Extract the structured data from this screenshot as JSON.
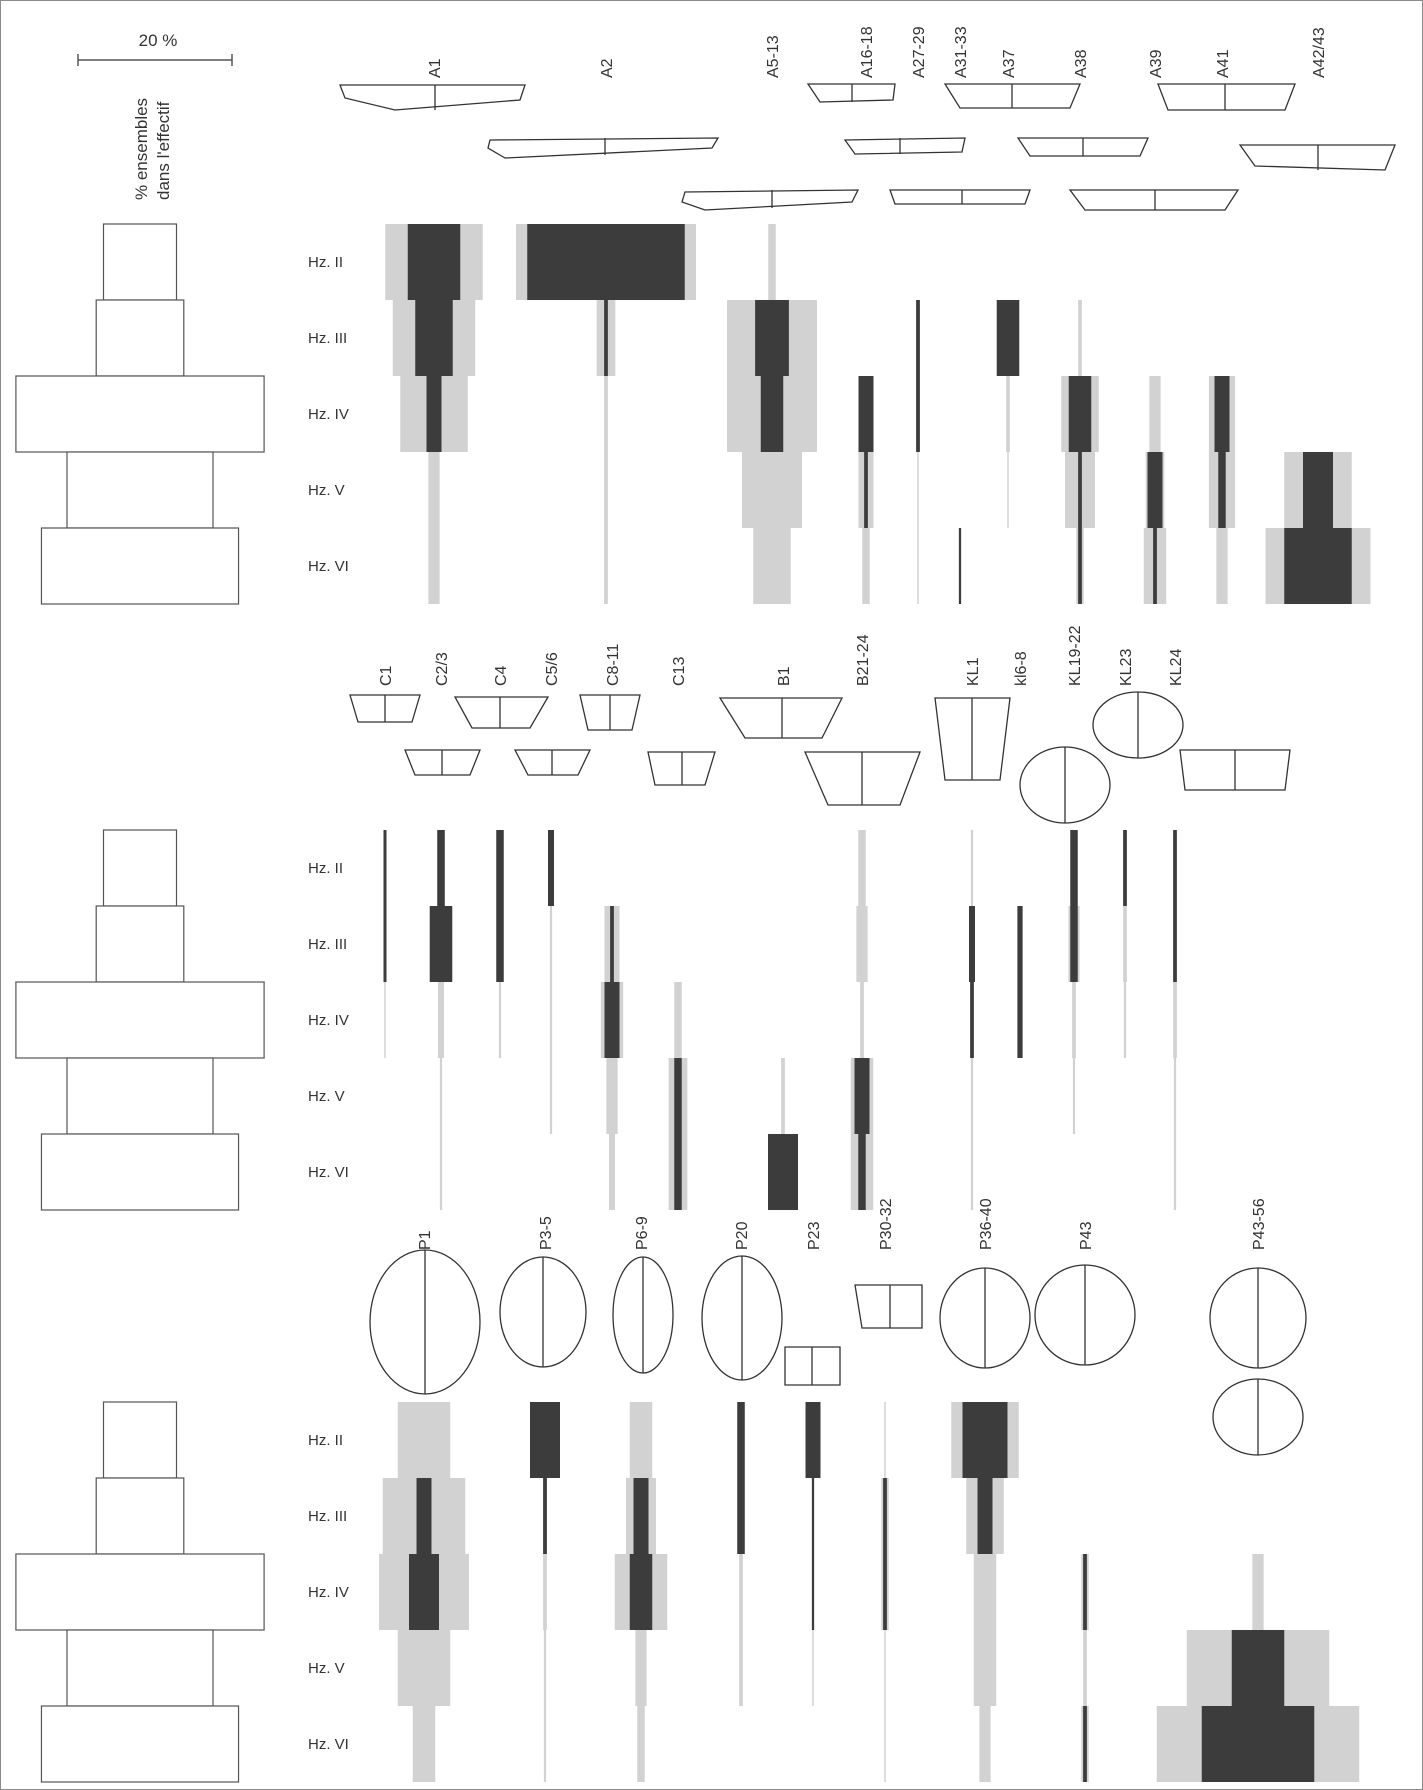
{
  "colors": {
    "outer": "#d2d2d2",
    "inner": "#3c3c3c",
    "stairs": "#555555",
    "vessel": "#333333"
  },
  "scale": {
    "label": "20 %",
    "axis_title_1": "% ensembles",
    "axis_title_2": "dans l'effectif"
  },
  "chart_data": [
    {
      "type": "seriation",
      "levels": [
        "Hz. II",
        "Hz. III",
        "Hz. IV",
        "Hz. V",
        "Hz. VI"
      ],
      "effectif_percent": [
        10,
        12,
        34,
        20,
        27
      ],
      "series": [
        {
          "name": "A1",
          "outer": [
            13,
            11,
            9,
            1.5,
            1.5
          ],
          "inner": [
            7,
            5,
            2,
            0,
            0
          ]
        },
        {
          "name": "A2",
          "outer": [
            24,
            2.5,
            0.5,
            0.5,
            0.5
          ],
          "inner": [
            21,
            0.5,
            0,
            0,
            0
          ]
        },
        {
          "name": "A5-13",
          "outer": [
            1,
            12,
            12,
            8,
            5
          ],
          "inner": [
            0,
            4.5,
            3,
            0,
            0
          ]
        },
        {
          "name": "A16-18",
          "outer": [
            0,
            0,
            2,
            2,
            1
          ],
          "inner": [
            0,
            0,
            2,
            0.5,
            0
          ]
        },
        {
          "name": "A27-29",
          "outer": [
            0,
            0.5,
            0.5,
            0.2,
            0.2
          ],
          "inner": [
            0,
            0.5,
            0.5,
            0,
            0
          ]
        },
        {
          "name": "A31-33",
          "outer": [
            0,
            0,
            0,
            0,
            0
          ],
          "inner": [
            0,
            0,
            0,
            0,
            0.3
          ]
        },
        {
          "name": "A37",
          "outer": [
            0,
            3,
            0.5,
            0.2,
            0
          ],
          "inner": [
            0,
            3,
            0,
            0,
            0
          ]
        },
        {
          "name": "A38",
          "outer": [
            0,
            0.5,
            5,
            4,
            1
          ],
          "inner": [
            0,
            0,
            3,
            0.5,
            0.5
          ]
        },
        {
          "name": "A39",
          "outer": [
            0,
            0,
            1.5,
            2.5,
            3
          ],
          "inner": [
            0,
            0,
            0,
            2,
            0.5
          ]
        },
        {
          "name": "A41",
          "outer": [
            0,
            0,
            3.5,
            3.5,
            1.5
          ],
          "inner": [
            0,
            0,
            2,
            1,
            0
          ]
        },
        {
          "name": "A42/43",
          "outer": [
            0,
            0,
            0,
            9,
            14
          ],
          "inner": [
            0,
            0,
            0,
            4,
            9
          ]
        },
        {
          "name": "C1",
          "outer": [
            0,
            0,
            0.2,
            0,
            0
          ],
          "inner": [
            0.4,
            0.4,
            0,
            0,
            0
          ]
        },
        {
          "name": "C2/3",
          "outer": [
            1,
            3,
            0.8,
            0.3,
            0.3
          ],
          "inner": [
            1,
            3,
            0,
            0,
            0
          ]
        },
        {
          "name": "C4",
          "outer": [
            0,
            0,
            0.3,
            0,
            0
          ],
          "inner": [
            1,
            1,
            0,
            0,
            0
          ]
        },
        {
          "name": "C5/6",
          "outer": [
            0,
            0.3,
            0.3,
            0.3,
            0
          ],
          "inner": [
            0.8,
            0,
            0,
            0,
            0
          ]
        },
        {
          "name": "C8-11",
          "outer": [
            0,
            2,
            3,
            1.5,
            0.8
          ],
          "inner": [
            0,
            0.5,
            2,
            0,
            0
          ]
        },
        {
          "name": "C13",
          "outer": [
            0,
            0,
            1,
            2.5,
            2.5
          ],
          "inner": [
            0,
            0,
            0,
            1,
            1
          ]
        },
        {
          "name": "B1",
          "outer": [
            0,
            0,
            0,
            0.5,
            0
          ],
          "inner": [
            0,
            0,
            0,
            0,
            4
          ]
        },
        {
          "name": "B21-24",
          "outer": [
            1,
            1.5,
            0.5,
            3,
            3
          ],
          "inner": [
            0,
            0,
            0,
            2,
            1
          ]
        },
        {
          "name": "KL1",
          "outer": [
            0.3,
            0.5,
            0.3,
            0.3,
            0.3
          ],
          "inner": [
            0,
            0.8,
            0.5,
            0,
            0
          ]
        },
        {
          "name": "kl6-8",
          "outer": [
            0,
            0,
            0,
            0,
            0
          ],
          "inner": [
            0,
            0.7,
            0.7,
            0,
            0
          ]
        },
        {
          "name": "KL19-22",
          "outer": [
            0.5,
            1.5,
            0.5,
            0.3,
            0
          ],
          "inner": [
            1,
            1,
            0,
            0,
            0
          ]
        },
        {
          "name": "KL23",
          "outer": [
            0,
            0.5,
            0.3,
            0,
            0
          ],
          "inner": [
            0.5,
            0,
            0,
            0,
            0
          ]
        },
        {
          "name": "KL24",
          "outer": [
            0,
            0,
            0.5,
            0.3,
            0.3
          ],
          "inner": [
            0.5,
            0.5,
            0,
            0,
            0
          ]
        },
        {
          "name": "P1",
          "outer": [
            7,
            11,
            12,
            7,
            3
          ],
          "inner": [
            0,
            2,
            4,
            0,
            0
          ]
        },
        {
          "name": "P3-5",
          "outer": [
            0,
            0.5,
            0.5,
            0.3,
            0.3
          ],
          "inner": [
            4,
            0.5,
            0,
            0,
            0
          ]
        },
        {
          "name": "P6-9",
          "outer": [
            3,
            4,
            7,
            1.5,
            1
          ],
          "inner": [
            0,
            2,
            3,
            0,
            0
          ]
        },
        {
          "name": "P20",
          "outer": [
            1,
            1,
            0.5,
            0.5,
            0
          ],
          "inner": [
            1,
            1,
            0,
            0,
            0
          ]
        },
        {
          "name": "P23",
          "outer": [
            0,
            0,
            0.2,
            0.2,
            0
          ],
          "inner": [
            2,
            0.3,
            0.3,
            0,
            0
          ]
        },
        {
          "name": "P30-32",
          "outer": [
            0.2,
            1,
            1,
            0.2,
            0.2
          ],
          "inner": [
            0,
            0.5,
            0.5,
            0,
            0
          ]
        },
        {
          "name": "P36-40",
          "outer": [
            9,
            5,
            3,
            3,
            1.5
          ],
          "inner": [
            6,
            2,
            0,
            0,
            0
          ]
        },
        {
          "name": "P43",
          "outer": [
            0,
            0,
            1,
            0.5,
            1
          ],
          "inner": [
            0,
            0,
            0.5,
            0,
            0.5
          ]
        },
        {
          "name": "P43-56",
          "outer": [
            0,
            0,
            1.5,
            19,
            27
          ],
          "inner": [
            0,
            0,
            0,
            7,
            15
          ]
        }
      ]
    }
  ]
}
